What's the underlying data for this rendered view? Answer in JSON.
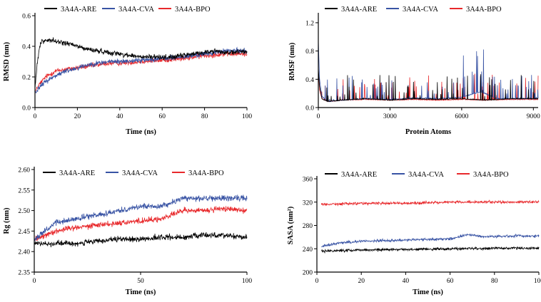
{
  "chart_data": [
    {
      "type": "line",
      "xlabel": "Time (ns)",
      "ylabel": "RMSD (nm)",
      "xlim": [
        0,
        100
      ],
      "ylim": [
        0,
        0.6
      ],
      "xticks": [
        0,
        20,
        40,
        60,
        80,
        100
      ],
      "yticks": [
        0.0,
        0.2,
        0.4,
        0.6
      ],
      "xtick_labels": [
        "0",
        "20",
        "40",
        "60",
        "80",
        "100"
      ],
      "ytick_labels": [
        "0.0",
        "0.2",
        "0.4",
        "0.6"
      ],
      "series": [
        {
          "name": "3A4A-ARE",
          "color": "#000000",
          "x": [
            0,
            1,
            2,
            3,
            5,
            8,
            10,
            15,
            20,
            25,
            30,
            35,
            40,
            45,
            50,
            55,
            60,
            65,
            70,
            75,
            80,
            85,
            90,
            95,
            100
          ],
          "y": [
            0.12,
            0.28,
            0.38,
            0.43,
            0.44,
            0.44,
            0.43,
            0.42,
            0.4,
            0.38,
            0.37,
            0.36,
            0.35,
            0.34,
            0.33,
            0.33,
            0.33,
            0.33,
            0.34,
            0.35,
            0.36,
            0.37,
            0.36,
            0.36,
            0.37
          ]
        },
        {
          "name": "3A4A-CVA",
          "color": "#3853a4",
          "x": [
            0,
            2,
            5,
            10,
            15,
            20,
            25,
            30,
            35,
            40,
            50,
            60,
            70,
            80,
            90,
            100
          ],
          "y": [
            0.1,
            0.13,
            0.17,
            0.21,
            0.24,
            0.26,
            0.28,
            0.29,
            0.3,
            0.3,
            0.31,
            0.32,
            0.33,
            0.35,
            0.37,
            0.37
          ]
        },
        {
          "name": "3A4A-BPO",
          "color": "#e8282b",
          "x": [
            0,
            2,
            5,
            10,
            15,
            20,
            25,
            30,
            35,
            40,
            50,
            60,
            70,
            80,
            90,
            100
          ],
          "y": [
            0.1,
            0.15,
            0.2,
            0.24,
            0.25,
            0.26,
            0.27,
            0.28,
            0.29,
            0.29,
            0.3,
            0.31,
            0.32,
            0.34,
            0.35,
            0.35
          ]
        }
      ],
      "legend": "top",
      "grid": false
    },
    {
      "type": "line",
      "xlabel": "Protein Atoms",
      "ylabel": "RMSF (nm)",
      "xlim": [
        0,
        9200
      ],
      "ylim": [
        0,
        1.3
      ],
      "xticks": [
        0,
        3000,
        6000,
        9000
      ],
      "yticks": [
        0.0,
        0.4,
        0.8,
        1.2
      ],
      "xtick_labels": [
        "0",
        "3000",
        "6000",
        "9000"
      ],
      "ytick_labels": [
        "0.0",
        "0.4",
        "0.8",
        "1.2"
      ],
      "series": [
        {
          "name": "3A4A-ARE",
          "color": "#000000",
          "x": [
            0,
            50,
            150,
            400,
            1000,
            2000,
            3000,
            4000,
            5000,
            6000,
            7000,
            8000,
            9200
          ],
          "y": [
            0.55,
            0.3,
            0.12,
            0.08,
            0.1,
            0.12,
            0.1,
            0.12,
            0.11,
            0.12,
            0.1,
            0.12,
            0.12
          ]
        },
        {
          "name": "3A4A-CVA",
          "color": "#3853a4",
          "x": [
            0,
            50,
            150,
            400,
            1000,
            2000,
            3000,
            4000,
            5000,
            6000,
            6800,
            7500,
            8000,
            9200
          ],
          "y": [
            0.95,
            0.4,
            0.15,
            0.08,
            0.1,
            0.12,
            0.11,
            0.13,
            0.12,
            0.14,
            0.22,
            0.12,
            0.12,
            0.12
          ]
        },
        {
          "name": "3A4A-BPO",
          "color": "#e8282b",
          "x": [
            0,
            50,
            150,
            400,
            1000,
            2000,
            3000,
            4000,
            5000,
            6000,
            7000,
            8000,
            9200
          ],
          "y": [
            0.5,
            0.25,
            0.12,
            0.08,
            0.1,
            0.11,
            0.1,
            0.11,
            0.1,
            0.11,
            0.1,
            0.11,
            0.11
          ]
        }
      ],
      "legend": "top",
      "grid": false
    },
    {
      "type": "line",
      "xlabel": "Time (ns)",
      "ylabel": "Rg (nm)",
      "xlim": [
        0,
        100
      ],
      "ylim": [
        2.35,
        2.6
      ],
      "xticks": [
        0,
        50,
        100
      ],
      "yticks": [
        2.35,
        2.4,
        2.45,
        2.5,
        2.55,
        2.6
      ],
      "xtick_labels": [
        "0",
        "50",
        "100"
      ],
      "ytick_labels": [
        "2.35",
        "2.40",
        "2.45",
        "2.50",
        "2.55",
        "2.60"
      ],
      "series": [
        {
          "name": "3A4A-ARE",
          "color": "#000000",
          "x": [
            0,
            10,
            20,
            30,
            40,
            50,
            60,
            70,
            80,
            90,
            100
          ],
          "y": [
            2.42,
            2.42,
            2.42,
            2.425,
            2.43,
            2.43,
            2.435,
            2.435,
            2.44,
            2.44,
            2.435
          ]
        },
        {
          "name": "3A4A-CVA",
          "color": "#3853a4",
          "x": [
            0,
            10,
            20,
            30,
            40,
            50,
            60,
            65,
            70,
            80,
            90,
            100
          ],
          "y": [
            2.43,
            2.47,
            2.48,
            2.49,
            2.5,
            2.51,
            2.51,
            2.52,
            2.53,
            2.53,
            2.53,
            2.53
          ]
        },
        {
          "name": "3A4A-BPO",
          "color": "#e8282b",
          "x": [
            0,
            10,
            20,
            30,
            40,
            50,
            60,
            70,
            80,
            90,
            100
          ],
          "y": [
            2.43,
            2.45,
            2.46,
            2.465,
            2.47,
            2.475,
            2.48,
            2.5,
            2.5,
            2.505,
            2.5
          ]
        }
      ],
      "legend": "top",
      "grid": false
    },
    {
      "type": "line",
      "xlabel": "Time (ns)",
      "ylabel": "SASA (nm²)",
      "xlim": [
        0,
        100
      ],
      "ylim": [
        200,
        360
      ],
      "xticks": [
        0,
        20,
        40,
        60,
        80,
        100
      ],
      "yticks": [
        200,
        240,
        280,
        320,
        360
      ],
      "xtick_labels": [
        "0",
        "20",
        "40",
        "60",
        "80",
        "100"
      ],
      "ytick_labels": [
        "200",
        "240",
        "280",
        "320",
        "360"
      ],
      "series": [
        {
          "name": "3A4A-ARE",
          "color": "#000000",
          "x": [
            2,
            20,
            40,
            60,
            80,
            100
          ],
          "y": [
            236,
            238,
            239,
            240,
            241,
            241
          ]
        },
        {
          "name": "3A4A-CVA",
          "color": "#3853a4",
          "x": [
            2,
            10,
            20,
            30,
            40,
            50,
            60,
            68,
            75,
            80,
            90,
            100
          ],
          "y": [
            244,
            250,
            253,
            254,
            255,
            256,
            257,
            264,
            261,
            261,
            262,
            262
          ]
        },
        {
          "name": "3A4A-BPO",
          "color": "#e8282b",
          "x": [
            2,
            20,
            40,
            60,
            80,
            100
          ],
          "y": [
            316,
            318,
            318,
            320,
            320,
            320
          ]
        }
      ],
      "legend": "top",
      "grid": false
    }
  ]
}
